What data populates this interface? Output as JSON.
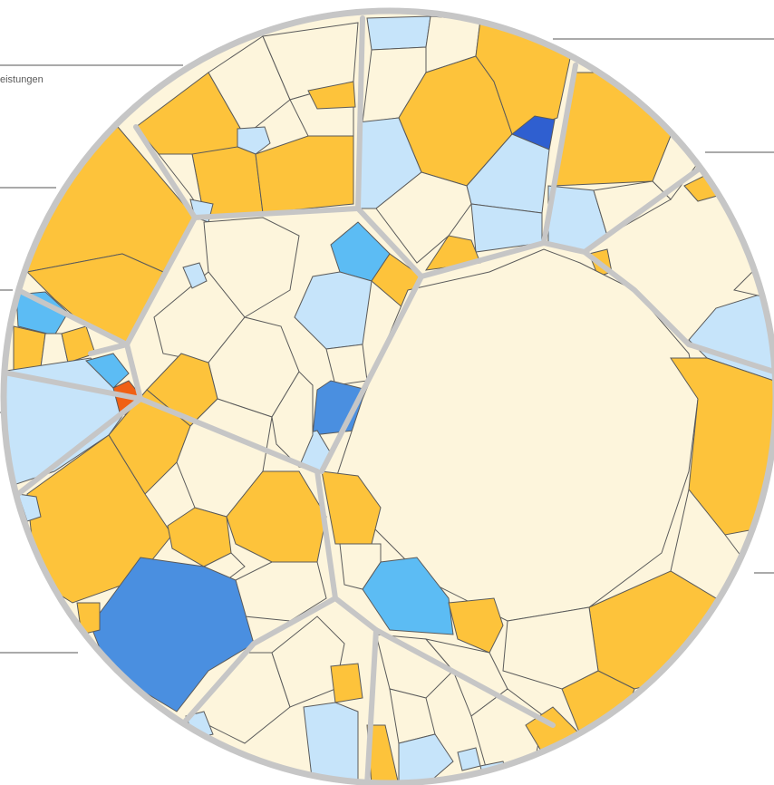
{
  "labels": {
    "leistungen": "eistungen"
  },
  "colors": {
    "cream": "#fdf5dc",
    "orange": "#fdc33b",
    "light_blue": "#c6e4fa",
    "sky_blue": "#5cbcf4",
    "mid_blue": "#4a8fe0",
    "dark_blue": "#2f5fd0",
    "red_orange": "#f06014",
    "border_gray": "#c6c6c6",
    "cell_line": "#5a5a5a"
  }
}
